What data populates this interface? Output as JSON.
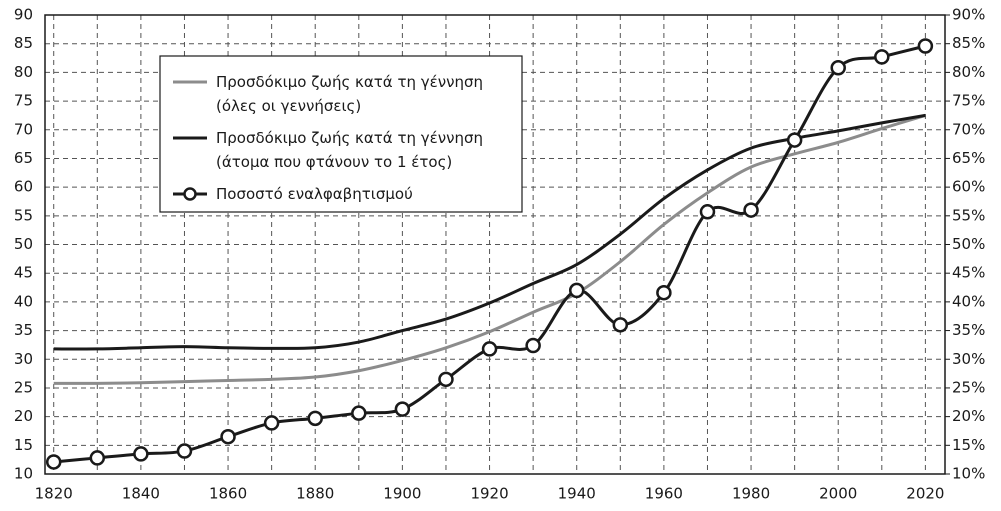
{
  "chart_data": {
    "type": "line",
    "x": [
      1820,
      1830,
      1840,
      1850,
      1860,
      1870,
      1880,
      1890,
      1900,
      1910,
      1920,
      1930,
      1940,
      1950,
      1960,
      1970,
      1980,
      1990,
      2000,
      2010,
      2020
    ],
    "series": [
      {
        "name": "Προσδόκιμο ζωής κατά τη γέννηση\n(όλες οι γεννήσεις)",
        "color": "#8c8c8c",
        "marker": false,
        "values": [
          25.8,
          25.8,
          25.9,
          26.1,
          26.3,
          26.5,
          26.9,
          28,
          29.8,
          32,
          34.8,
          38.2,
          41.5,
          47,
          53.5,
          59,
          63.5,
          65.8,
          67.8,
          70.2,
          72.5
        ]
      },
      {
        "name": "Προσδόκιμο ζωής κατά τη γέννηση\n(άτομα που φτάνουν το 1 έτος)",
        "color": "#1a1a1a",
        "marker": false,
        "values": [
          31.8,
          31.8,
          32,
          32.2,
          32,
          31.9,
          32,
          33,
          35,
          37,
          39.8,
          43.2,
          46.5,
          51.8,
          58,
          63,
          66.8,
          68.5,
          69.8,
          71.2,
          72.5
        ]
      },
      {
        "name": "Ποσοστό εναλφαβητισμού",
        "color": "#1a1a1a",
        "marker": true,
        "axis": "y2",
        "values": [
          12.1,
          12.8,
          13.5,
          14,
          16.5,
          18.9,
          19.7,
          20.6,
          21.3,
          26.5,
          31.8,
          32.4,
          42,
          36,
          41.6,
          55.7,
          56,
          68.2,
          80.8,
          82.7,
          84.6
        ]
      }
    ],
    "xlim": [
      1818,
      2024.5
    ],
    "xticks": [
      1820,
      1840,
      1860,
      1880,
      1900,
      1920,
      1940,
      1960,
      1980,
      2000,
      2020
    ],
    "xminor_ticks": [
      1830,
      1850,
      1870,
      1890,
      1910,
      1930,
      1950,
      1970,
      1990,
      2010
    ],
    "ylim": [
      10,
      90
    ],
    "yticks": [
      10,
      15,
      20,
      25,
      30,
      35,
      40,
      45,
      50,
      55,
      60,
      65,
      70,
      75,
      80,
      85,
      90
    ],
    "y2lim": [
      10,
      90
    ],
    "y2ticks": [
      {
        "value": 10,
        "label": "10%"
      },
      {
        "value": 15,
        "label": "15%"
      },
      {
        "value": 20,
        "label": "20%"
      },
      {
        "value": 25,
        "label": "25%"
      },
      {
        "value": 30,
        "label": "30%"
      },
      {
        "value": 35,
        "label": "35%"
      },
      {
        "value": 40,
        "label": "40%"
      },
      {
        "value": 45,
        "label": "45%"
      },
      {
        "value": 50,
        "label": "50%"
      },
      {
        "value": 55,
        "label": "55%"
      },
      {
        "value": 60,
        "label": "60%"
      },
      {
        "value": 65,
        "label": "65%"
      },
      {
        "value": 70,
        "label": "70%"
      },
      {
        "value": 75,
        "label": "75%"
      },
      {
        "value": 80,
        "label": "80%"
      },
      {
        "value": 85,
        "label": "85%"
      },
      {
        "value": 90,
        "label": "90%"
      }
    ],
    "grid": true,
    "legend": "upper left"
  }
}
